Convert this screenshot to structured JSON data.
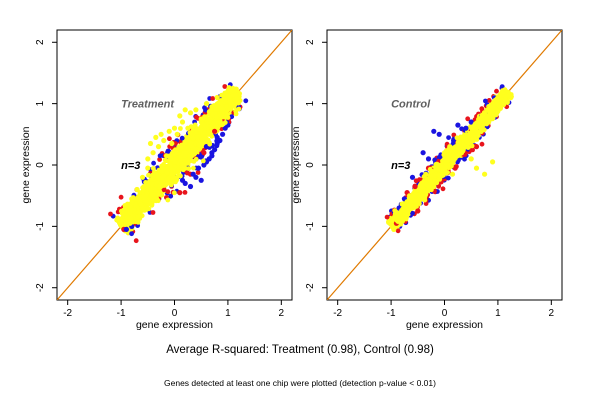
{
  "figure": {
    "summary": "Average R-squared: Treatment (0.98), Control (0.98)",
    "note": "Genes detected at least one chip were plotted (detection p-value < 0.01)"
  },
  "colors": {
    "diagonal": "#e07a00",
    "series_red": "#e8141c",
    "series_blue": "#1a14e0",
    "series_yellow": "#ffff1e",
    "series_outline": "#c8c800"
  },
  "chart_data": [
    {
      "type": "scatter",
      "title": "Treatment",
      "annotation": "n=3",
      "xlabel": "gene expression",
      "ylabel": "gene expression",
      "xlim": [
        -2.2,
        2.2
      ],
      "ylim": [
        -2.2,
        2.2
      ],
      "xticks": [
        -2,
        -1,
        0,
        1,
        2
      ],
      "yticks": [
        -2,
        -1,
        0,
        1,
        2
      ],
      "reference_line": {
        "slope": 1,
        "intercept": 0
      },
      "series": [
        {
          "color": "red",
          "points": [
            [
              -0.95,
              -1.05
            ],
            [
              -0.6,
              -0.7
            ],
            [
              -0.2,
              -0.4
            ],
            [
              0.1,
              -0.45
            ],
            [
              0.3,
              -0.15
            ],
            [
              0.6,
              0.3
            ],
            [
              0.75,
              0.55
            ],
            [
              0.9,
              0.75
            ],
            [
              -0.75,
              -0.95
            ],
            [
              0.4,
              0.1
            ],
            [
              -0.3,
              -0.55
            ],
            [
              1.0,
              0.9
            ],
            [
              0.55,
              0.2
            ]
          ]
        },
        {
          "color": "blue",
          "points": [
            [
              0.2,
              -0.3
            ],
            [
              0.35,
              -0.15
            ],
            [
              0.45,
              -0.05
            ],
            [
              0.5,
              -0.25
            ],
            [
              0.55,
              0.0
            ],
            [
              0.6,
              0.05
            ],
            [
              0.65,
              0.1
            ],
            [
              0.7,
              0.2
            ],
            [
              0.75,
              0.25
            ],
            [
              0.8,
              0.35
            ],
            [
              0.85,
              0.4
            ],
            [
              0.9,
              0.5
            ],
            [
              0.95,
              0.6
            ],
            [
              1.0,
              0.65
            ],
            [
              0.3,
              -0.35
            ],
            [
              0.4,
              -0.2
            ],
            [
              0.25,
              -0.05
            ],
            [
              0.7,
              0.15
            ],
            [
              -0.9,
              -1.05
            ],
            [
              -0.8,
              -1.0
            ],
            [
              0.05,
              -0.2
            ],
            [
              0.6,
              0.3
            ],
            [
              0.15,
              -0.25
            ],
            [
              0.8,
              0.45
            ]
          ]
        },
        {
          "color": "yellow",
          "points": [
            [
              -0.2,
              0.4
            ],
            [
              -0.1,
              0.55
            ],
            [
              0.0,
              0.6
            ],
            [
              -0.3,
              0.3
            ],
            [
              -0.4,
              0.2
            ],
            [
              -0.5,
              0.1
            ],
            [
              0.1,
              0.8
            ],
            [
              0.15,
              0.7
            ],
            [
              -0.25,
              0.5
            ],
            [
              0.2,
              0.9
            ],
            [
              0.3,
              0.85
            ],
            [
              -0.05,
              0.35
            ],
            [
              0.05,
              0.5
            ],
            [
              -0.15,
              0.15
            ],
            [
              0.25,
              0.6
            ],
            [
              0.4,
              0.9
            ],
            [
              0.6,
              1.0
            ],
            [
              0.8,
              1.1
            ],
            [
              1.0,
              1.2
            ],
            [
              1.15,
              1.22
            ],
            [
              -0.6,
              -0.2
            ],
            [
              -0.7,
              -0.4
            ],
            [
              -0.8,
              -0.55
            ],
            [
              -0.9,
              -0.75
            ],
            [
              -0.5,
              -0.05
            ],
            [
              0.5,
              0.75
            ],
            [
              0.7,
              0.95
            ],
            [
              0.9,
              1.05
            ],
            [
              -0.45,
              0.35
            ],
            [
              -0.35,
              0.45
            ]
          ]
        }
      ]
    },
    {
      "type": "scatter",
      "title": "Control",
      "annotation": "n=3",
      "xlabel": "gene expression",
      "ylabel": "gene expression",
      "xlim": [
        -2.2,
        2.2
      ],
      "ylim": [
        -2.2,
        2.2
      ],
      "xticks": [
        -2,
        -1,
        0,
        1,
        2
      ],
      "yticks": [
        -2,
        -1,
        0,
        1,
        2
      ],
      "reference_line": {
        "slope": 1,
        "intercept": 0
      },
      "series": [
        {
          "color": "red",
          "points": [
            [
              -0.9,
              -0.95
            ],
            [
              -0.7,
              -0.45
            ],
            [
              -0.55,
              -0.35
            ],
            [
              -0.3,
              -0.05
            ],
            [
              0.1,
              0.05
            ],
            [
              0.35,
              0.4
            ],
            [
              0.5,
              0.55
            ],
            [
              0.7,
              0.75
            ],
            [
              0.85,
              0.95
            ],
            [
              -0.5,
              -0.75
            ],
            [
              0.2,
              -0.05
            ],
            [
              0.6,
              0.3
            ]
          ]
        },
        {
          "color": "blue",
          "points": [
            [
              -0.2,
              0.55
            ],
            [
              -0.1,
              0.5
            ],
            [
              0.25,
              0.65
            ],
            [
              0.4,
              0.6
            ],
            [
              0.5,
              0.7
            ],
            [
              0.6,
              0.6
            ],
            [
              0.7,
              0.8
            ],
            [
              0.8,
              0.85
            ],
            [
              -0.4,
              0.2
            ],
            [
              -0.3,
              0.1
            ],
            [
              -0.6,
              -0.2
            ],
            [
              -0.75,
              -0.55
            ],
            [
              -0.85,
              -0.7
            ],
            [
              0.45,
              0.5
            ],
            [
              0.65,
              0.7
            ]
          ]
        },
        {
          "color": "yellow",
          "points": [
            [
              0.3,
              0.4
            ],
            [
              0.2,
              0.25
            ],
            [
              -0.1,
              -0.05
            ],
            [
              0.1,
              0.3
            ],
            [
              0.5,
              0.1
            ],
            [
              0.6,
              -0.05
            ],
            [
              0.75,
              -0.15
            ],
            [
              0.9,
              0.05
            ],
            [
              -0.2,
              -0.35
            ],
            [
              -0.5,
              -0.5
            ],
            [
              0.0,
              0.2
            ],
            [
              0.4,
              0.45
            ],
            [
              0.55,
              0.6
            ],
            [
              0.8,
              0.75
            ],
            [
              1.0,
              1.0
            ],
            [
              1.15,
              1.2
            ],
            [
              -0.7,
              -0.8
            ],
            [
              -0.95,
              -1.05
            ],
            [
              0.15,
              -0.15
            ],
            [
              -0.35,
              -0.15
            ]
          ]
        }
      ]
    }
  ]
}
